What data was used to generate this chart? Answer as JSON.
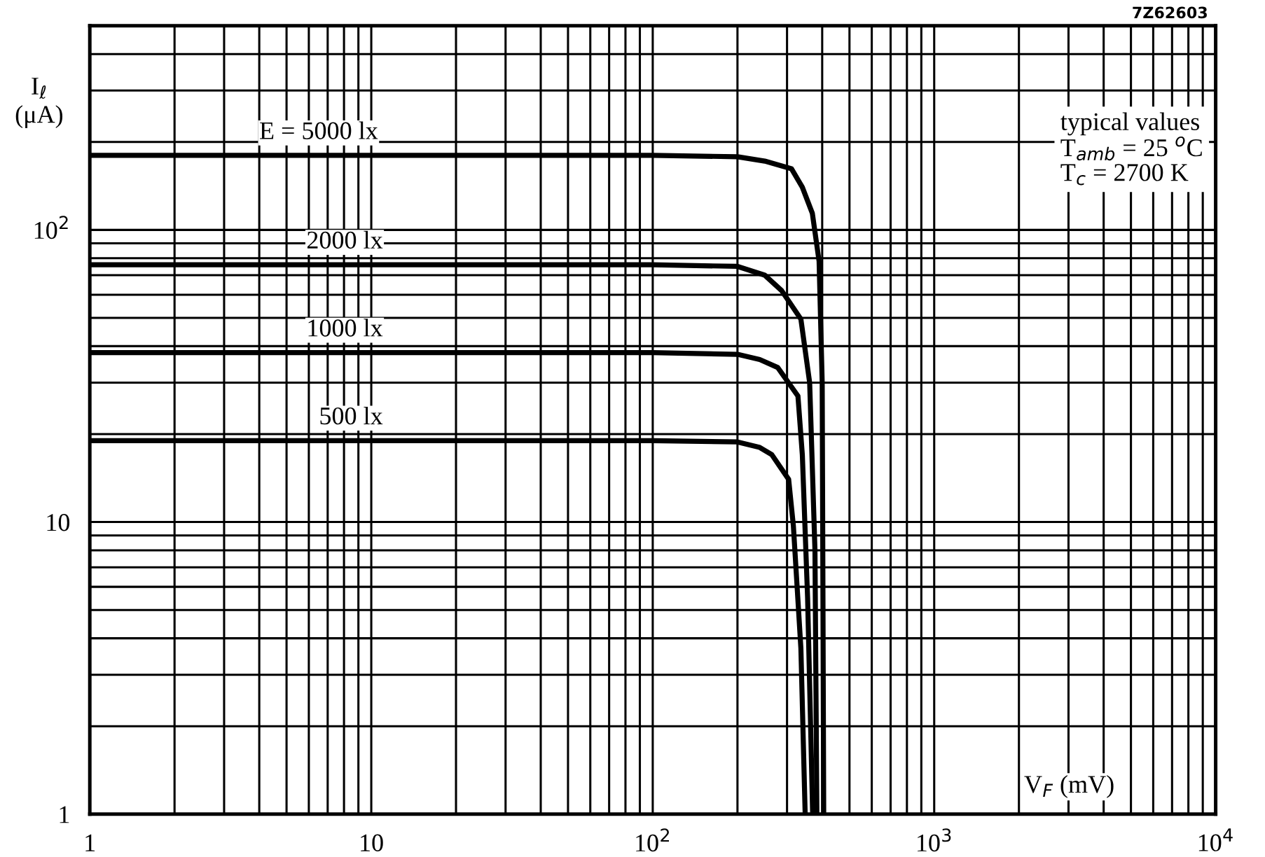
{
  "chart_data": {
    "type": "line",
    "xlabel": "V$_{F}$ (mV)",
    "ylabel": "I$_{ℓ}$\n(μA)",
    "annotations": [
      "typical values\nT$_{amb}$ = 25 $^{o}$C\nT$_{c}$ = 2700 K",
      "7Z62603"
    ],
    "log": "xy",
    "grid": true,
    "legend": false,
    "marker": "none",
    "line_style": "solid",
    "xlim": [
      1,
      10000
    ],
    "ylim": [
      1,
      500
    ],
    "xticks": [
      1,
      {
        "value": 2,
        "label": null
      },
      {
        "value": 3,
        "label": null
      },
      {
        "value": 4,
        "label": null
      },
      {
        "value": 5,
        "label": null
      },
      {
        "value": 6,
        "label": null
      },
      {
        "value": 7,
        "label": null
      },
      {
        "value": 8,
        "label": null
      },
      {
        "value": 9,
        "label": null
      },
      10,
      {
        "value": 20,
        "label": null
      },
      {
        "value": 30,
        "label": null
      },
      {
        "value": 40,
        "label": null
      },
      {
        "value": 50,
        "label": null
      },
      {
        "value": 60,
        "label": null
      },
      {
        "value": 70,
        "label": null
      },
      {
        "value": 80,
        "label": null
      },
      {
        "value": 90,
        "label": null
      },
      {
        "value": 100,
        "label": "10$^{2}$"
      },
      {
        "value": 200,
        "label": null
      },
      {
        "value": 300,
        "label": null
      },
      {
        "value": 400,
        "label": null
      },
      {
        "value": 500,
        "label": null
      },
      {
        "value": 600,
        "label": null
      },
      {
        "value": 700,
        "label": null
      },
      {
        "value": 800,
        "label": null
      },
      {
        "value": 900,
        "label": null
      },
      {
        "value": 1000,
        "label": "10$^{3}$"
      },
      {
        "value": 2000,
        "label": null
      },
      {
        "value": 3000,
        "label": null
      },
      {
        "value": 4000,
        "label": null
      },
      {
        "value": 5000,
        "label": null
      },
      {
        "value": 6000,
        "label": null
      },
      {
        "value": 7000,
        "label": null
      },
      {
        "value": 8000,
        "label": null
      },
      {
        "value": 9000,
        "label": null
      },
      {
        "value": 10000,
        "label": "10$^{4}$"
      }
    ],
    "yticks": [
      1,
      {
        "value": 2,
        "label": null
      },
      {
        "value": 3,
        "label": null
      },
      {
        "value": 4,
        "label": null
      },
      {
        "value": 5,
        "label": null
      },
      {
        "value": 6,
        "label": null
      },
      {
        "value": 7,
        "label": null
      },
      {
        "value": 8,
        "label": null
      },
      {
        "value": 9,
        "label": null
      },
      10,
      {
        "value": 20,
        "label": null
      },
      {
        "value": 30,
        "label": null
      },
      {
        "value": 40,
        "label": null
      },
      {
        "value": 50,
        "label": null
      },
      {
        "value": 60,
        "label": null
      },
      {
        "value": 70,
        "label": null
      },
      {
        "value": 80,
        "label": null
      },
      {
        "value": 90,
        "label": null
      },
      {
        "value": 100,
        "label": "10$^{2}$"
      },
      {
        "value": 200,
        "label": null
      },
      {
        "value": 300,
        "label": null
      },
      {
        "value": 400,
        "label": null
      }
    ],
    "series": [
      {
        "name": "E = 5000 lx",
        "color": "#000000",
        "x": [
          1,
          100,
          200,
          250,
          311,
          340,
          369,
          390,
          400,
          405
        ],
        "values": [
          180,
          180,
          178,
          172,
          162,
          140,
          114,
          78,
          30,
          1
        ]
      },
      {
        "name": "2000 lx",
        "color": "#000000",
        "x": [
          1,
          100,
          200,
          250,
          287,
          336,
          361,
          377,
          383
        ],
        "values": [
          76,
          76,
          75,
          70,
          62,
          49.5,
          30,
          8,
          1
        ]
      },
      {
        "name": "1000 lx",
        "color": "#000000",
        "x": [
          1,
          100,
          200,
          240,
          278,
          328,
          340,
          355,
          370
        ],
        "values": [
          38,
          38,
          37.5,
          36,
          33.8,
          27,
          17,
          5.5,
          1
        ]
      },
      {
        "name": "500 lx",
        "color": "#000000",
        "x": [
          1,
          100,
          200,
          240,
          265,
          304,
          316,
          336,
          348
        ],
        "values": [
          19,
          19,
          18.8,
          18,
          17,
          14,
          9.7,
          3.7,
          1
        ]
      }
    ]
  }
}
